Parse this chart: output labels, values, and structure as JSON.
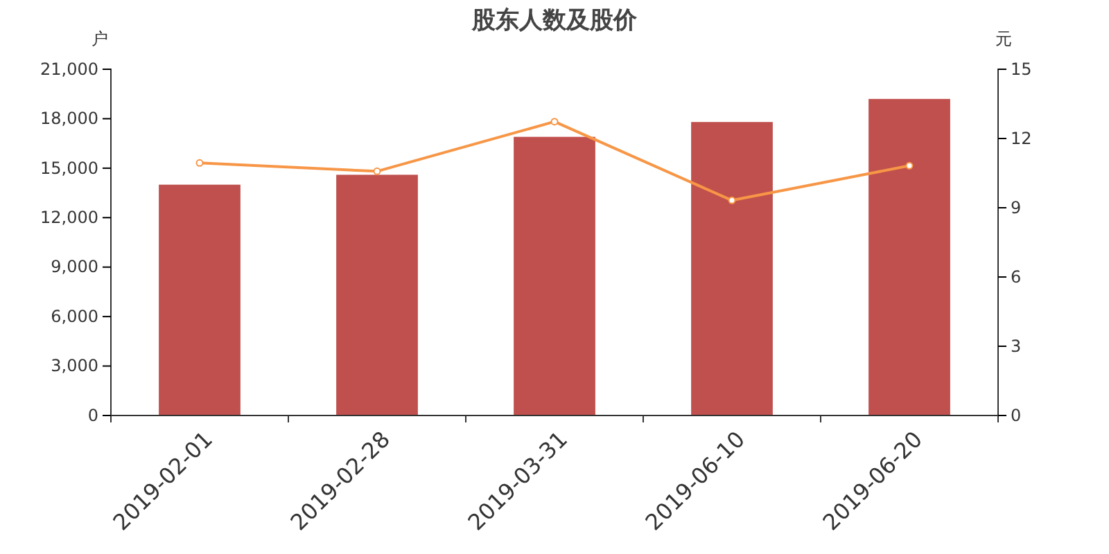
{
  "chart_data": {
    "type": "bar",
    "title": "股东人数及股价",
    "ylabel": "户",
    "y2label": "元",
    "categories": [
      "2019-02-01",
      "2019-02-28",
      "2019-03-31",
      "2019-06-10",
      "2019-06-20"
    ],
    "series": [
      {
        "color": "#c0504d",
        "values": [
          14000,
          14600,
          16900,
          17800,
          19200
        ]
      },
      {
        "type": "line",
        "axis": "y2",
        "color": "#f79646",
        "marker": "circle",
        "values": [
          10.94,
          10.58,
          12.73,
          9.32,
          10.82
        ]
      }
    ],
    "ylim": [
      0,
      21000
    ],
    "yticks": [
      {
        "value": 0,
        "label": "0"
      },
      {
        "value": 3000,
        "label": "3,000"
      },
      {
        "value": 6000,
        "label": "6,000"
      },
      {
        "value": 9000,
        "label": "9,000"
      },
      {
        "value": 12000,
        "label": "12,000"
      },
      {
        "value": 15000,
        "label": "15,000"
      },
      {
        "value": 18000,
        "label": "18,000"
      },
      {
        "value": 21000,
        "label": "21,000"
      }
    ],
    "y2lim": [
      0,
      15
    ],
    "y2ticks": [
      0,
      3,
      6,
      9,
      12,
      15
    ],
    "grid": false
  }
}
